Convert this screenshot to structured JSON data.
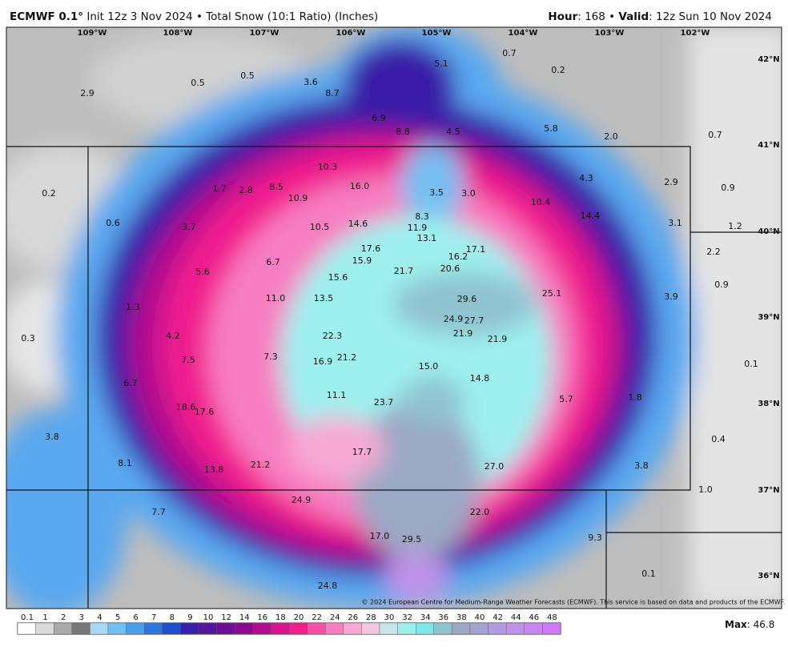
{
  "header": {
    "model": "ECMWF 0.1°",
    "description": "Init 12z 3 Nov 2024 • Total Snow (10:1 Ratio) (Inches)",
    "hour_label": "Hour",
    "hour_value": ": 168 • ",
    "valid_label": "Valid",
    "valid_value": ": 12z Sun 10 Nov 2024"
  },
  "lon_labels": [
    "109°W",
    "108°W",
    "107°W",
    "106°W",
    "105°W",
    "104°W",
    "103°W",
    "102°W"
  ],
  "lat_labels": [
    "42°N",
    "41°N",
    "40°N",
    "39°N",
    "38°N",
    "37°N",
    "36°N"
  ],
  "values": [
    "0.7",
    "5.1",
    "0.2",
    "0.5",
    "0.5",
    "3.6",
    "8.7",
    "2.9",
    "6.9",
    "8.8",
    "4.5",
    "5.8",
    "2.0",
    "0.7",
    "10.3",
    "16.0",
    "4.3",
    "2.9",
    "1.7",
    "2.8",
    "8.5",
    "10.9",
    "3.5",
    "3.0",
    "10.4",
    "0.9",
    "0.2",
    "14.4",
    "8.3",
    "11.9",
    "14.6",
    "0.6",
    "3.7",
    "10.5",
    "13.1",
    "3.1",
    "1.2",
    "17.6",
    "17.1",
    "16.2",
    "2.2",
    "6.7",
    "15.9",
    "20.6",
    "21.7",
    "5.6",
    "15.6",
    "25.1",
    "0.9",
    "11.0",
    "13.5",
    "29.6",
    "3.9",
    "1.3",
    "24.9",
    "27.7",
    "0.3",
    "4.2",
    "22.3",
    "21.9",
    "21.9",
    "7.5",
    "7.3",
    "16.9",
    "21.2",
    "15.0",
    "0.1",
    "14.8",
    "6.7",
    "11.1",
    "23.7",
    "5.7",
    "1.8",
    "18.6",
    "17.6",
    "3.8",
    "0.4",
    "17.7",
    "8.1",
    "21.2",
    "27.0",
    "3.8",
    "13.8",
    "1.0",
    "24.9",
    "7.7",
    "22.0",
    "17.0",
    "29.5",
    "9.3",
    "0.1",
    "24.8"
  ],
  "legend": {
    "labels": [
      "0.1",
      "1",
      "2",
      "3",
      "4",
      "5",
      "6",
      "7",
      "8",
      "9",
      "10",
      "12",
      "14",
      "16",
      "18",
      "20",
      "22",
      "24",
      "26",
      "28",
      "30",
      "32",
      "34",
      "36",
      "38",
      "40",
      "42",
      "44",
      "46",
      "48"
    ]
  },
  "max": {
    "label": "Max",
    "value": ": 46.8"
  },
  "copyright": "© 2024 European Centre for Medium-Range Weather Forecasts (ECMWF). This service is based on data and products of the ECMWF."
}
